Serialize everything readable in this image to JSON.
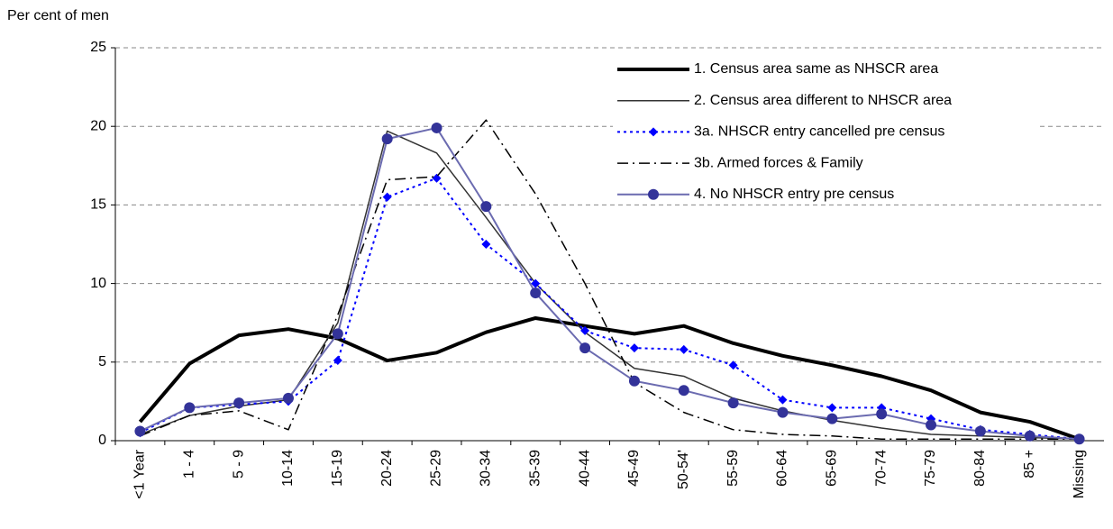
{
  "chart_data": {
    "type": "line",
    "y_label": "Per cent of men",
    "categories": [
      "<1 Year",
      "1 - 4",
      "5 - 9",
      "10-14",
      "15-19",
      "20-24",
      "25-29",
      "30-34",
      "35-39",
      "40-44",
      "45-49",
      "50-54'",
      "55-59",
      "60-64",
      "65-69",
      "70-74",
      "75-79",
      "80-84",
      "85 +",
      "Missing"
    ],
    "series": [
      {
        "name": "1. Census area same as NHSCR area",
        "color": "#000000",
        "width": 4,
        "dash": "solid",
        "marker": "none",
        "values": [
          1.2,
          4.9,
          6.7,
          7.1,
          6.5,
          5.1,
          5.6,
          6.9,
          7.8,
          7.3,
          6.8,
          7.3,
          6.2,
          5.4,
          4.8,
          4.1,
          3.2,
          1.8,
          1.2,
          0.1
        ]
      },
      {
        "name": "2. Census area different to NHSCR area",
        "color": "#333333",
        "width": 1.5,
        "dash": "solid",
        "marker": "none",
        "values": [
          0.4,
          1.6,
          2.2,
          2.6,
          7.5,
          19.7,
          18.3,
          14.2,
          10.0,
          6.9,
          4.6,
          4.1,
          2.7,
          1.9,
          1.3,
          0.8,
          0.4,
          0.3,
          0.2,
          0.1
        ]
      },
      {
        "name": "3a. NHSCR entry cancelled pre census",
        "color": "#0000ff",
        "width": 2,
        "dash": "dotted",
        "marker": "diamond",
        "values": [
          0.5,
          2.1,
          2.3,
          2.5,
          5.1,
          15.5,
          16.7,
          12.5,
          10.0,
          7.0,
          5.9,
          5.8,
          4.8,
          2.6,
          2.1,
          2.1,
          1.4,
          0.7,
          0.4,
          0.1
        ]
      },
      {
        "name": "3b. Armed forces & Family",
        "color": "#000000",
        "width": 1.5,
        "dash": "dashdot",
        "marker": "none",
        "values": [
          0.3,
          1.6,
          1.9,
          0.7,
          8.0,
          16.6,
          16.8,
          20.4,
          15.7,
          10.0,
          3.7,
          1.8,
          0.7,
          0.4,
          0.3,
          0.1,
          0.1,
          0.1,
          0.1,
          0.1
        ]
      },
      {
        "name": "4. No NHSCR entry pre census",
        "color": "#6b6bb0",
        "marker_color": "#333399",
        "width": 2,
        "dash": "solid",
        "marker": "circle",
        "values": [
          0.6,
          2.1,
          2.4,
          2.7,
          6.8,
          19.2,
          19.9,
          14.9,
          9.4,
          5.9,
          3.8,
          3.2,
          2.4,
          1.8,
          1.4,
          1.7,
          1.0,
          0.6,
          0.3,
          0.1
        ]
      }
    ],
    "ylim": [
      0,
      25
    ],
    "yticks": [
      0,
      5,
      10,
      15,
      20,
      25
    ],
    "grid": true,
    "legend": "top-right"
  }
}
